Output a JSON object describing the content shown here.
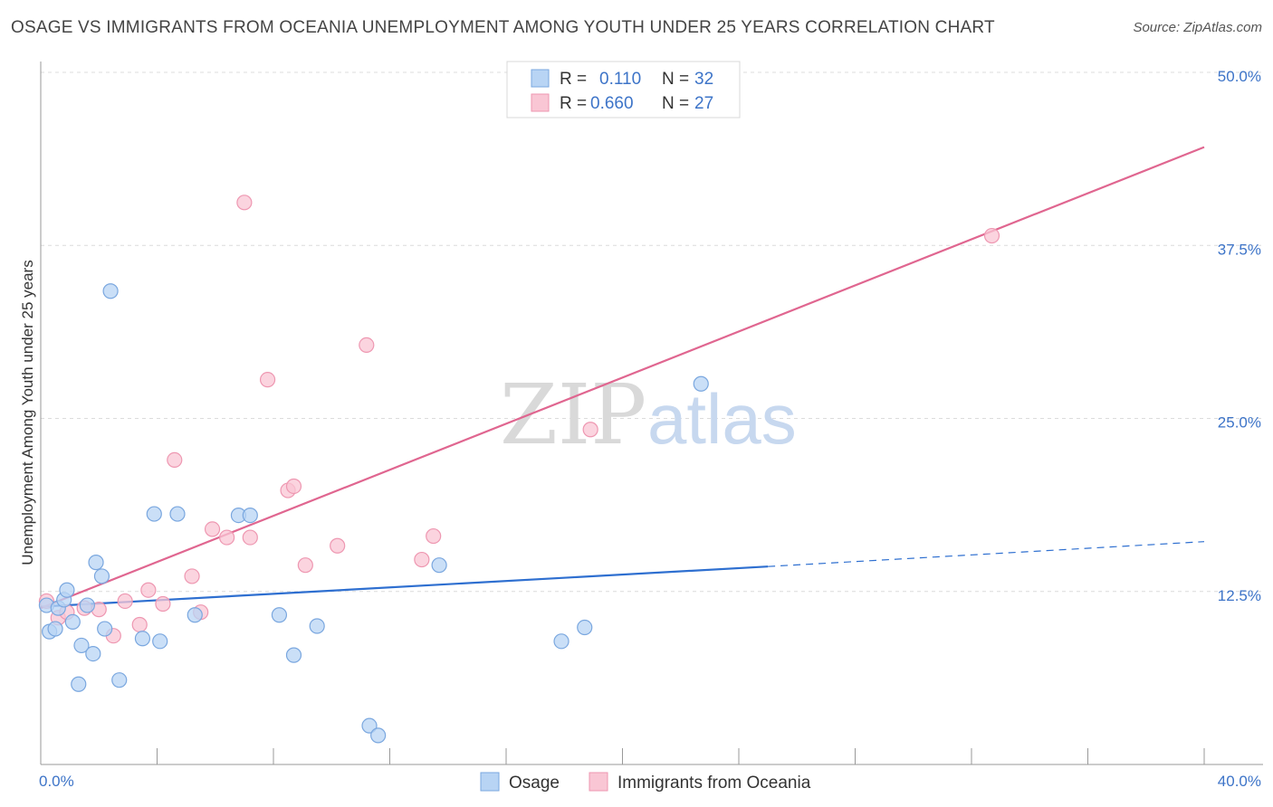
{
  "title": "OSAGE VS IMMIGRANTS FROM OCEANIA UNEMPLOYMENT AMONG YOUTH UNDER 25 YEARS CORRELATION CHART",
  "source": "Source: ZipAtlas.com",
  "watermark": {
    "zip": "ZIP",
    "atlas": "atlas"
  },
  "colors": {
    "osage_fill": "#b8d4f4",
    "osage_stroke": "#7aa7df",
    "osage_line": "#2e6fd0",
    "oceania_fill": "#f9c6d4",
    "oceania_stroke": "#ee97b1",
    "oceania_line": "#e06690",
    "grid": "#dcdcdc",
    "axis_label": "#3d74c8"
  },
  "legend": {
    "rows": [
      {
        "r_label": "R =",
        "r_value": "0.110",
        "n_label": "N =",
        "n_value": "32"
      },
      {
        "r_label": "R =",
        "r_value": "0.660",
        "n_label": "N =",
        "n_value": "27"
      }
    ]
  },
  "chart_data": {
    "type": "scatter",
    "xlabel": "",
    "ylabel": "Unemployment Among Youth under 25 years",
    "xlim": [
      0,
      40
    ],
    "ylim": [
      0,
      50
    ],
    "x_tick_labels": {
      "left": "0.0%",
      "right": "40.0%"
    },
    "y_ticks": [
      12.5,
      25.0,
      37.5,
      50.0
    ],
    "y_tick_labels": [
      "12.5%",
      "25.0%",
      "37.5%",
      "50.0%"
    ],
    "grid": true,
    "legend_position": "top-center",
    "series": [
      {
        "name": "Osage",
        "points": [
          [
            0.2,
            11.5
          ],
          [
            0.3,
            9.6
          ],
          [
            0.5,
            9.8
          ],
          [
            0.6,
            11.3
          ],
          [
            0.8,
            11.9
          ],
          [
            0.9,
            12.6
          ],
          [
            1.1,
            10.3
          ],
          [
            1.4,
            8.6
          ],
          [
            1.3,
            5.8
          ],
          [
            1.6,
            11.5
          ],
          [
            1.8,
            8.0
          ],
          [
            1.9,
            14.6
          ],
          [
            2.1,
            13.6
          ],
          [
            2.2,
            9.8
          ],
          [
            2.4,
            34.2
          ],
          [
            2.7,
            6.1
          ],
          [
            3.5,
            9.1
          ],
          [
            3.9,
            18.1
          ],
          [
            4.1,
            8.9
          ],
          [
            4.7,
            18.1
          ],
          [
            5.3,
            10.8
          ],
          [
            6.8,
            18.0
          ],
          [
            7.2,
            18.0
          ],
          [
            8.2,
            10.8
          ],
          [
            8.7,
            7.9
          ],
          [
            9.5,
            10.0
          ],
          [
            11.3,
            2.8
          ],
          [
            11.6,
            2.1
          ],
          [
            13.7,
            14.4
          ],
          [
            17.9,
            8.9
          ],
          [
            18.7,
            9.9
          ],
          [
            22.7,
            27.5
          ]
        ],
        "trend": {
          "x0": 0,
          "y0": 11.4,
          "x1": 25,
          "y1": 14.3,
          "dashed_to_x": 40,
          "dashed_to_y": 16.1
        }
      },
      {
        "name": "Immigrants from Oceania",
        "points": [
          [
            0.2,
            11.8
          ],
          [
            0.6,
            10.6
          ],
          [
            0.9,
            11.0
          ],
          [
            1.5,
            11.3
          ],
          [
            2.0,
            11.2
          ],
          [
            2.5,
            9.3
          ],
          [
            2.9,
            11.8
          ],
          [
            3.4,
            10.1
          ],
          [
            3.7,
            12.6
          ],
          [
            4.2,
            11.6
          ],
          [
            4.6,
            22.0
          ],
          [
            5.2,
            13.6
          ],
          [
            5.5,
            11.0
          ],
          [
            5.9,
            17.0
          ],
          [
            6.4,
            16.4
          ],
          [
            7.0,
            40.6
          ],
          [
            7.2,
            16.4
          ],
          [
            7.8,
            27.8
          ],
          [
            8.5,
            19.8
          ],
          [
            8.7,
            20.1
          ],
          [
            9.1,
            14.4
          ],
          [
            10.2,
            15.8
          ],
          [
            11.2,
            30.3
          ],
          [
            13.1,
            14.8
          ],
          [
            13.5,
            16.5
          ],
          [
            18.9,
            24.2
          ],
          [
            32.7,
            38.2
          ]
        ],
        "trend": {
          "x0": 0,
          "y0": 11.3,
          "x1": 40,
          "y1": 44.6
        }
      }
    ]
  }
}
